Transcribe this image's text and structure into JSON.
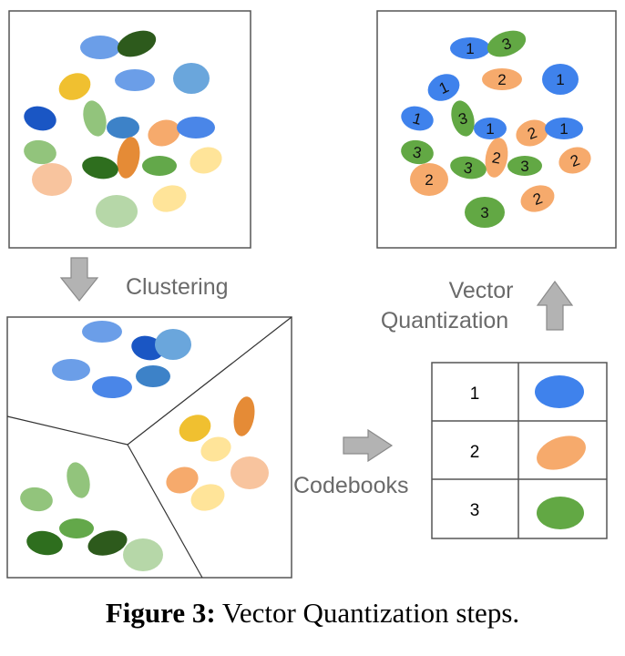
{
  "labels": {
    "clustering": "Clustering",
    "vector_line1": "Vector",
    "vector_line2": "Quantization",
    "codebooks": "Codebooks"
  },
  "codebook_rows": [
    {
      "id": "1",
      "color_name": "blue",
      "color": "#3f82ec"
    },
    {
      "id": "2",
      "color_name": "orange",
      "color": "#f6aa6c"
    },
    {
      "id": "3",
      "color_name": "green",
      "color": "#62a844"
    }
  ],
  "palette": {
    "blue": "#3f82ec",
    "orange": "#f6aa6c",
    "green": "#62a844",
    "arrow_fill": "#b3b3b3",
    "arrow_stroke": "#8a8a8a",
    "frame": "#555555"
  },
  "quantized_labels": [
    "1",
    "3",
    "1",
    "2",
    "1",
    "1",
    "3",
    "1",
    "2",
    "1",
    "3",
    "2",
    "3",
    "3",
    "2",
    "2",
    "2",
    "3"
  ],
  "caption": {
    "prefix": "Figure 3:",
    "text": " Vector Quantization steps."
  }
}
